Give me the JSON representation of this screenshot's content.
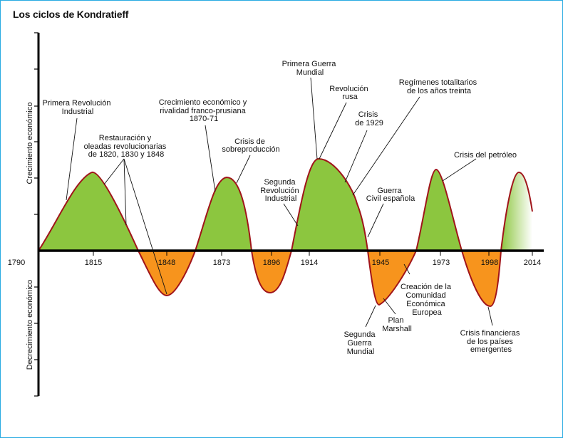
{
  "title": "Los ciclos de Kondratieff",
  "colors": {
    "growth": "#8cc63f",
    "decline": "#f7941d",
    "curve": "#a0141a",
    "border": "#29abe2"
  },
  "axis": {
    "y_positive_label": "Crecimiento económico",
    "y_negative_label": "Decrecimiento económico",
    "years": [
      "1790",
      "1815",
      "1848",
      "1873",
      "1896",
      "1914",
      "1945",
      "1973",
      "1998",
      "2014"
    ]
  },
  "annotations": {
    "primera_revolucion": [
      "Primera Revolución",
      "Industrial"
    ],
    "restauracion": [
      "Restauración y",
      "oleadas revolucionarias",
      "de 1820, 1830 y 1848"
    ],
    "rivalidad": [
      "Crecimiento económico y",
      "rivalidad franco-prusiana",
      "1870-71"
    ],
    "sobreproduccion": [
      "Crisis de",
      "sobreproducción"
    ],
    "segunda_revolucion": [
      "Segunda",
      "Revolución",
      "Industrial"
    ],
    "primera_guerra": [
      "Primera Guerra",
      "Mundial"
    ],
    "revolucion_rusa": [
      "Revolución",
      "rusa"
    ],
    "crisis_1929": [
      "Crisis",
      "de 1929"
    ],
    "regimenes": [
      "Regímenes totalitarios",
      "de los años treinta"
    ],
    "guerra_civil": [
      "Guerra",
      "Civil española"
    ],
    "petroleo": [
      "Crisis del petróleo"
    ],
    "cee": [
      "Creación de la",
      "Comunidad",
      "Económica",
      "Europea"
    ],
    "plan_marshall": [
      "Plan",
      "Marshall"
    ],
    "segunda_guerra": [
      "Segunda",
      "Guerra",
      "Mundial"
    ],
    "crisis_financieras": [
      "Crisis financieras",
      "de los países",
      "emergentes"
    ]
  }
}
